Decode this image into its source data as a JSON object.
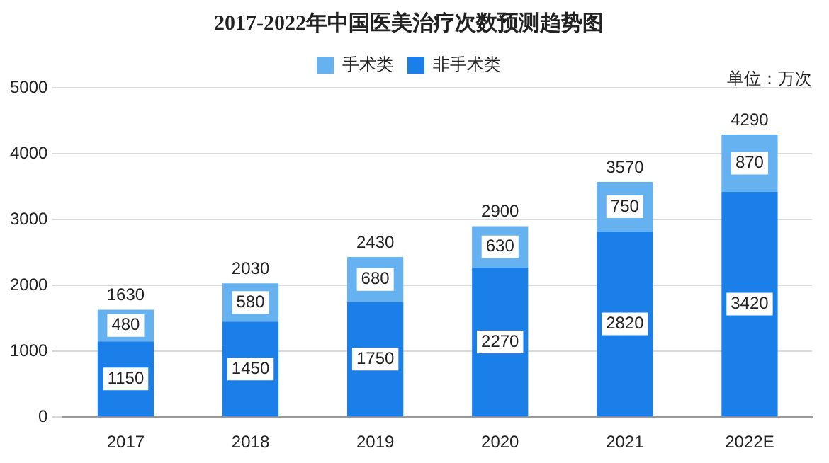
{
  "chart_data": {
    "type": "bar",
    "title": "2017-2022年中国医美治疗次数预测趋势图",
    "categories": [
      "2017",
      "2018",
      "2019",
      "2020",
      "2021",
      "2022E"
    ],
    "series": [
      {
        "name": "非手术类",
        "color": "#1a7fe8",
        "values": [
          1150,
          1450,
          1750,
          2270,
          2820,
          3420
        ]
      },
      {
        "name": "手术类",
        "color": "#66b2f0",
        "values": [
          480,
          580,
          680,
          630,
          750,
          870
        ]
      }
    ],
    "stacked": true,
    "totals": [
      "1630",
      "2030",
      "2430",
      "2900",
      "3570",
      "4290"
    ],
    "data_labels": true,
    "ylim": [
      0,
      5000
    ],
    "yticks": [
      0,
      1000,
      2000,
      3000,
      4000,
      5000
    ],
    "grid": "y",
    "legend": "top",
    "annotations": [
      "单位：万次"
    ]
  }
}
